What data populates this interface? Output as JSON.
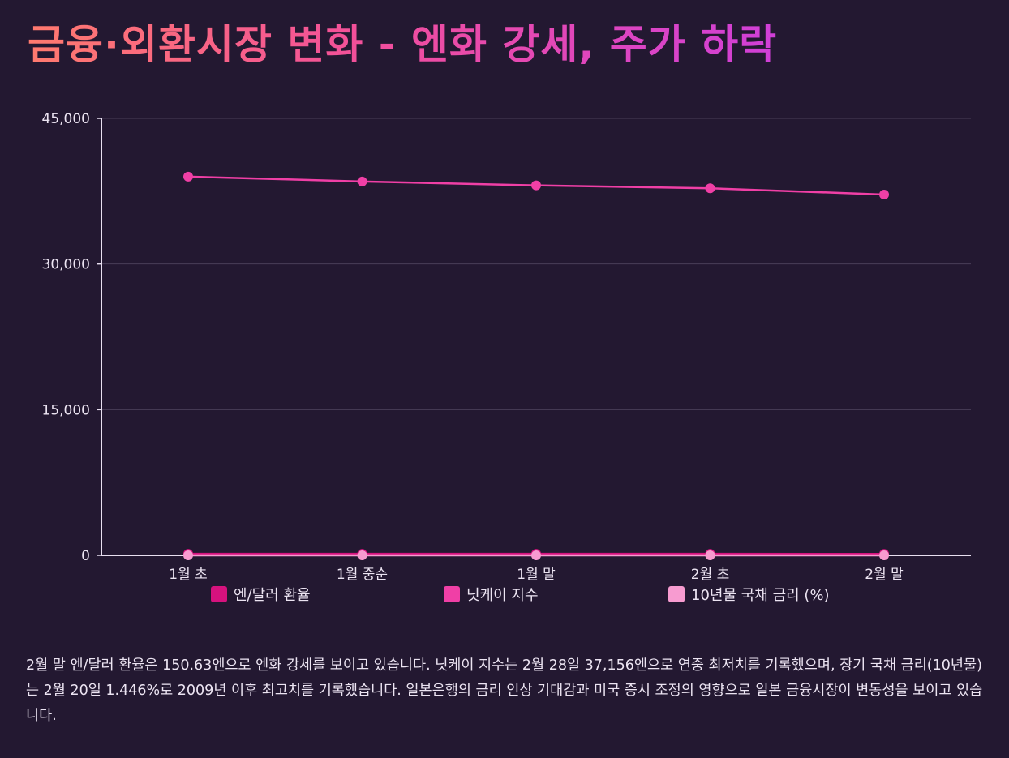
{
  "title": "금융·외환시장 변화 - 엔화 강세, 주가 하락",
  "chart_data": {
    "type": "line",
    "categories": [
      "1월 초",
      "1월 중순",
      "1월 말",
      "2월 초",
      "2월 말"
    ],
    "ylim": [
      0,
      45000
    ],
    "yticks": [
      0,
      15000,
      30000,
      45000
    ],
    "ytick_labels": [
      "0",
      "15,000",
      "30,000",
      "45,000"
    ],
    "grid": true,
    "legend_position": "bottom",
    "series": [
      {
        "name": "엔/달러 환율",
        "color": "#d6127e",
        "values": [
          158,
          156,
          155,
          152,
          150.63
        ]
      },
      {
        "name": "닛케이 지수",
        "color": "#f03fa6",
        "values": [
          39000,
          38500,
          38100,
          37800,
          37156
        ]
      },
      {
        "name": "10년물 국채 금리 (%)",
        "color": "#f79bd0",
        "values": [
          1.1,
          1.2,
          1.25,
          1.3,
          1.446
        ]
      }
    ]
  },
  "note": "2월 말 엔/달러 환율은 150.63엔으로 엔화 강세를 보이고 있습니다. 닛케이 지수는 2월 28일 37,156엔으로 연중 최저치를 기록했으며, 장기 국채 금리(10년물)는 2월 20일 1.446%로 2009년 이후 최고치를 기록했습니다. 일본은행의 금리 인상 기대감과 미국 증시 조정의 영향으로 일본 금융시장이 변동성을 보이고 있습니다."
}
